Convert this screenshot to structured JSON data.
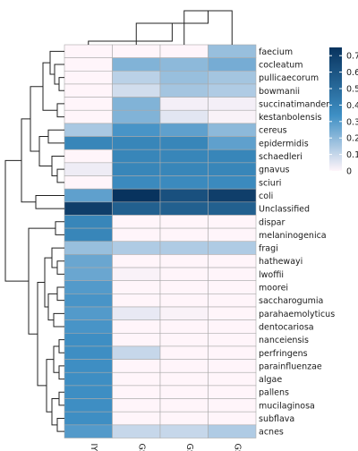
{
  "chart_data": {
    "type": "heatmap",
    "title": "",
    "columns": [
      "IY",
      "GS1",
      "GS2",
      "GS3"
    ],
    "rows": [
      "faecium",
      "cocleatum",
      "pullicaecorum",
      "bowmanii",
      "succinatimandens",
      "kestanbolensis",
      "cereus",
      "epidermidis",
      "schaedleri",
      "gnavus",
      "sciuri",
      "coli",
      "Unclassified",
      "dispar",
      "melaninogenica",
      "fragi",
      "hathewayi",
      "lwoffii",
      "moorei",
      "saccharogumia",
      "parahaemolyticus",
      "dentocariosa",
      "nanceiensis",
      "perfringens",
      "parainfluenzae",
      "algae",
      "pallens",
      "mucilaginosa",
      "subflava",
      "acnes"
    ],
    "values": [
      [
        0.0,
        0.0,
        0.0,
        0.18
      ],
      [
        0.0,
        0.22,
        0.2,
        0.24
      ],
      [
        0.0,
        0.12,
        0.18,
        0.16
      ],
      [
        0.0,
        0.08,
        0.16,
        0.14
      ],
      [
        0.0,
        0.22,
        0.02,
        0.02
      ],
      [
        0.0,
        0.22,
        0.05,
        0.01
      ],
      [
        0.15,
        0.32,
        0.28,
        0.2
      ],
      [
        0.38,
        0.38,
        0.38,
        0.28
      ],
      [
        0.0,
        0.38,
        0.38,
        0.38
      ],
      [
        0.03,
        0.38,
        0.38,
        0.38
      ],
      [
        0.0,
        0.36,
        0.36,
        0.36
      ],
      [
        0.28,
        0.75,
        0.62,
        0.7
      ],
      [
        0.7,
        0.55,
        0.55,
        0.55
      ],
      [
        0.38,
        0.0,
        0.0,
        0.0
      ],
      [
        0.38,
        0.0,
        0.0,
        0.0
      ],
      [
        0.18,
        0.14,
        0.14,
        0.14
      ],
      [
        0.26,
        0.0,
        0.0,
        0.0
      ],
      [
        0.26,
        0.01,
        0.0,
        0.0
      ],
      [
        0.3,
        0.0,
        0.0,
        0.0
      ],
      [
        0.32,
        0.0,
        0.0,
        0.0
      ],
      [
        0.3,
        0.04,
        0.01,
        0.0
      ],
      [
        0.32,
        0.0,
        0.0,
        0.0
      ],
      [
        0.34,
        0.0,
        0.0,
        0.0
      ],
      [
        0.34,
        0.1,
        0.0,
        0.0
      ],
      [
        0.34,
        0.0,
        0.0,
        0.0
      ],
      [
        0.34,
        0.0,
        0.0,
        0.0
      ],
      [
        0.34,
        0.0,
        0.0,
        0.0
      ],
      [
        0.34,
        0.0,
        0.0,
        0.0
      ],
      [
        0.34,
        0.0,
        0.0,
        0.0
      ],
      [
        0.3,
        0.1,
        0.1,
        0.14
      ]
    ],
    "colorscale": {
      "min": 0,
      "max": 0.75,
      "low_color": "#fff5fa",
      "mid_color": "#3e8fc4",
      "high_color": "#08335e",
      "ticks": [
        "0",
        "0.1",
        "0.2",
        "0.3",
        "0.4",
        "0.5",
        "0.6",
        "0.7"
      ]
    },
    "row_dendrogram": true,
    "column_dendrogram": true,
    "grid_color": "#aaaaaa",
    "legend_position": "top-right"
  }
}
